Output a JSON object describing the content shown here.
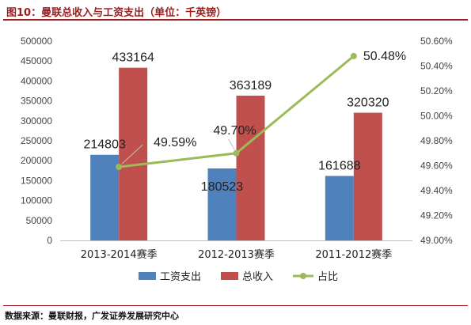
{
  "figure": {
    "title": "图10：曼联总收入与工资支出（单位：千英镑）",
    "source": "数据来源：曼联财报，广发证券发展研究中心"
  },
  "chart_data": {
    "type": "bar",
    "categories": [
      "2013-2014赛季",
      "2012-2013赛季",
      "2011-2012赛季"
    ],
    "series": [
      {
        "name": "工资支出",
        "type": "bar",
        "axis": "left",
        "color": "#4f81bd",
        "values": [
          214803,
          180523,
          161688
        ]
      },
      {
        "name": "总收入",
        "type": "bar",
        "axis": "left",
        "color": "#c0504d",
        "values": [
          433164,
          363189,
          320320
        ]
      },
      {
        "name": "占比",
        "type": "line",
        "axis": "right",
        "color": "#9bbb59",
        "values": [
          49.59,
          49.7,
          50.48
        ]
      }
    ],
    "bar_labels": {
      "工资支出": [
        "214803",
        "180523",
        "161688"
      ],
      "总收入": [
        "433164",
        "363189",
        "320320"
      ]
    },
    "line_labels": [
      "49.59%",
      "49.70%",
      "50.48%"
    ],
    "y_left": {
      "lim": [
        0,
        500000
      ],
      "ticks": [
        0,
        50000,
        100000,
        150000,
        200000,
        250000,
        300000,
        350000,
        400000,
        450000,
        500000
      ],
      "tick_labels": [
        "0",
        "50000",
        "100000",
        "150000",
        "200000",
        "250000",
        "300000",
        "350000",
        "400000",
        "450000",
        "500000"
      ]
    },
    "y_right": {
      "lim": [
        49.0,
        50.6
      ],
      "ticks": [
        49.0,
        49.2,
        49.4,
        49.6,
        49.8,
        50.0,
        50.2,
        50.4,
        50.6
      ],
      "tick_labels": [
        "49.00%",
        "49.20%",
        "49.40%",
        "49.60%",
        "49.80%",
        "50.00%",
        "50.20%",
        "50.40%",
        "50.60%"
      ]
    },
    "grid": false,
    "legend_position": "bottom"
  }
}
